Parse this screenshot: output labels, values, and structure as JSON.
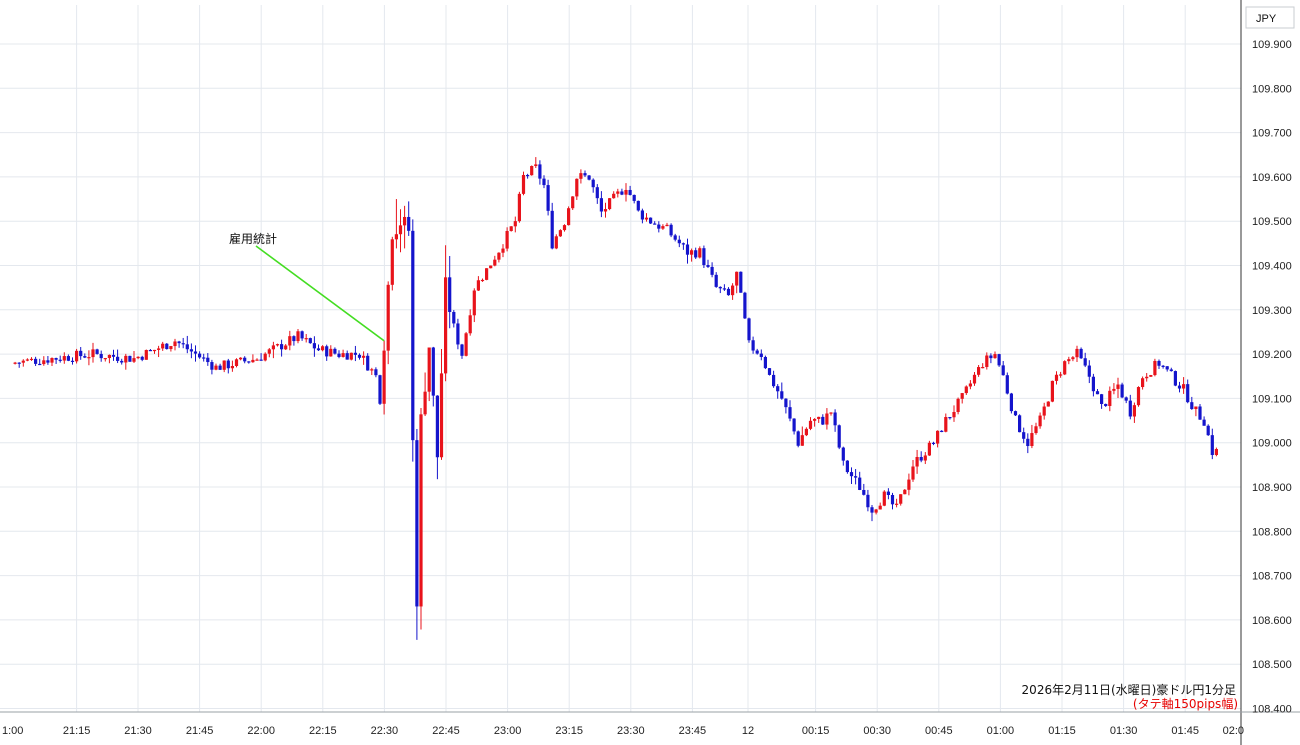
{
  "chart_data": {
    "type": "candlestick",
    "currency_label": "JPY",
    "caption": "2026年2月11日(水曜日)豪ドル円1分足",
    "caption_note": "(タテ軸150pips幅)",
    "annotation": {
      "text": "雇用統計",
      "target_time": "22:30",
      "target_price": 109.23
    },
    "y_ticks": [
      109.9,
      109.8,
      109.7,
      109.6,
      109.5,
      109.4,
      109.3,
      109.2,
      109.1,
      109.0,
      108.9,
      108.8,
      108.7,
      108.6,
      108.5,
      108.4
    ],
    "y_tick_labels": [
      "109.900",
      "109.800",
      "109.700",
      "109.600",
      "109.500",
      "109.400",
      "109.300",
      "109.200",
      "109.100",
      "109.000",
      "108.900",
      "108.800",
      "108.700",
      "108.600",
      "108.500",
      "108.400"
    ],
    "x_tick_labels": [
      "1:00",
      "21:15",
      "21:30",
      "21:45",
      "22:00",
      "22:15",
      "22:30",
      "22:45",
      "23:00",
      "23:15",
      "23:30",
      "23:45",
      "12",
      "00:15",
      "00:30",
      "00:45",
      "01:00",
      "01:15",
      "01:30",
      "01:45",
      "02:0"
    ],
    "colors": {
      "up": "#e8131b",
      "down": "#1414cc",
      "annotation_line": "#44dd22",
      "grid": "#e4e8ee",
      "axis": "#333333"
    },
    "up_color_meaning": "rising candle (red)",
    "keypoints": [
      [
        "21:00",
        109.18
      ],
      [
        "21:10",
        109.19
      ],
      [
        "21:20",
        109.2
      ],
      [
        "21:30",
        109.19
      ],
      [
        "21:40",
        109.23
      ],
      [
        "21:50",
        109.17
      ],
      [
        "22:00",
        109.19
      ],
      [
        "22:10",
        109.24
      ],
      [
        "22:15",
        109.21
      ],
      [
        "22:20",
        109.2
      ],
      [
        "22:25",
        109.2
      ],
      [
        "22:29",
        109.15
      ],
      [
        "22:30",
        109.1
      ],
      [
        "22:31",
        109.23
      ],
      [
        "22:33",
        109.48
      ],
      [
        "22:35",
        109.5
      ],
      [
        "22:37",
        109.48
      ],
      [
        "22:38",
        109.0
      ],
      [
        "22:39",
        108.65
      ],
      [
        "22:40",
        109.05
      ],
      [
        "22:42",
        109.22
      ],
      [
        "22:44",
        108.97
      ],
      [
        "22:46",
        109.35
      ],
      [
        "22:48",
        109.26
      ],
      [
        "22:50",
        109.2
      ],
      [
        "22:53",
        109.35
      ],
      [
        "22:56",
        109.39
      ],
      [
        "23:00",
        109.45
      ],
      [
        "23:03",
        109.5
      ],
      [
        "23:05",
        109.6
      ],
      [
        "23:08",
        109.62
      ],
      [
        "23:10",
        109.58
      ],
      [
        "23:12",
        109.45
      ],
      [
        "23:15",
        109.5
      ],
      [
        "23:18",
        109.6
      ],
      [
        "23:21",
        109.6
      ],
      [
        "23:24",
        109.52
      ],
      [
        "23:27",
        109.55
      ],
      [
        "23:30",
        109.58
      ],
      [
        "23:33",
        109.52
      ],
      [
        "23:36",
        109.5
      ],
      [
        "23:40",
        109.48
      ],
      [
        "23:45",
        109.43
      ],
      [
        "23:48",
        109.43
      ],
      [
        "23:52",
        109.35
      ],
      [
        "23:55",
        109.33
      ],
      [
        "23:57",
        109.38
      ],
      [
        "00:00",
        109.22
      ],
      [
        "00:03",
        109.2
      ],
      [
        "00:05",
        109.15
      ],
      [
        "00:08",
        109.1
      ],
      [
        "00:12",
        109.0
      ],
      [
        "00:15",
        109.05
      ],
      [
        "00:18",
        109.05
      ],
      [
        "00:20",
        109.07
      ],
      [
        "00:23",
        108.95
      ],
      [
        "00:27",
        108.9
      ],
      [
        "00:30",
        108.85
      ],
      [
        "00:33",
        108.88
      ],
      [
        "00:36",
        108.85
      ],
      [
        "00:40",
        108.95
      ],
      [
        "00:45",
        109.0
      ],
      [
        "00:48",
        109.05
      ],
      [
        "00:52",
        109.1
      ],
      [
        "00:55",
        109.15
      ],
      [
        "00:57",
        109.18
      ],
      [
        "01:00",
        109.2
      ],
      [
        "01:02",
        109.15
      ],
      [
        "01:05",
        109.05
      ],
      [
        "01:08",
        109.0
      ],
      [
        "01:11",
        109.05
      ],
      [
        "01:14",
        109.13
      ],
      [
        "01:17",
        109.18
      ],
      [
        "01:20",
        109.2
      ],
      [
        "01:23",
        109.15
      ],
      [
        "01:26",
        109.08
      ],
      [
        "01:30",
        109.13
      ],
      [
        "01:33",
        109.07
      ],
      [
        "01:36",
        109.15
      ],
      [
        "01:40",
        109.18
      ],
      [
        "01:43",
        109.15
      ],
      [
        "01:46",
        109.12
      ],
      [
        "01:49",
        109.07
      ],
      [
        "01:51",
        109.05
      ],
      [
        "01:53",
        108.98
      ]
    ]
  }
}
